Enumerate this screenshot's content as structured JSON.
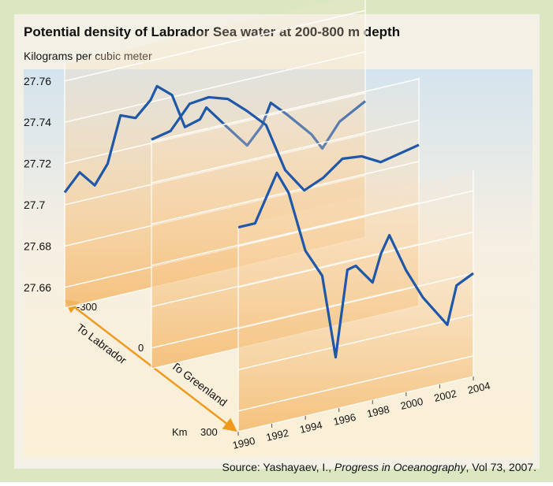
{
  "chart_data": {
    "type": "line",
    "title": "Potential density of Labrador Sea water at 200-800 m depth",
    "subtitle": "Kilograms per cubic meter",
    "ylim": [
      27.65,
      27.78
    ],
    "yticks": [
      27.66,
      27.68,
      27.7,
      27.72,
      27.74,
      27.76
    ],
    "xlim": [
      1990,
      2004
    ],
    "xticks": [
      1990,
      1992,
      1994,
      1996,
      1998,
      2000,
      2002,
      2004
    ],
    "z_label": "Km",
    "direction_labels": [
      "To Labrador",
      "To Greenland"
    ],
    "series": [
      {
        "name": "-300",
        "color": "#1f58a8",
        "x": [
          1990,
          1990.7,
          1991.4,
          1992,
          1992.6,
          1993.3,
          1994,
          1994.3,
          1995,
          1995.6,
          1996.3,
          1996.6,
          1997.5,
          1998.5,
          1999.2,
          1999.6,
          2000.4,
          2001.5,
          2002,
          2002.8,
          2004
        ],
        "values": [
          27.706,
          27.714,
          27.706,
          27.715,
          27.737,
          27.734,
          27.741,
          27.747,
          27.741,
          27.724,
          27.726,
          27.731,
          27.72,
          27.708,
          27.716,
          27.726,
          27.718,
          27.706,
          27.698,
          27.709,
          27.716
        ]
      },
      {
        "name": "0",
        "color": "#1f58a8",
        "x": [
          1990,
          1991,
          1992,
          1993,
          1994,
          1995,
          1996,
          1997,
          1998,
          1999,
          2000,
          2001,
          2002,
          2003,
          2004
        ],
        "values": [
          27.761,
          27.763,
          27.774,
          27.775,
          27.772,
          27.764,
          27.755,
          27.731,
          27.719,
          27.723,
          27.73,
          27.729,
          27.724,
          27.726,
          27.728
        ]
      },
      {
        "name": "300",
        "color": "#1f58a8",
        "x": [
          1990,
          1991,
          1992.3,
          1993,
          1994,
          1995,
          1995.8,
          1996.5,
          1997,
          1998,
          1998.5,
          1999,
          2000,
          2001,
          2002.45,
          2003,
          2004
        ],
        "values": [
          27.749,
          27.749,
          27.771,
          27.76,
          27.73,
          27.716,
          27.675,
          27.716,
          27.717,
          27.707,
          27.72,
          27.728,
          27.709,
          27.694,
          27.678,
          27.696,
          27.7
        ]
      }
    ],
    "source": {
      "prefix": "Source:  Yashayaev, I., ",
      "journal": "Progress in Oceanography",
      "suffix": ", Vol 73, 2007."
    }
  }
}
